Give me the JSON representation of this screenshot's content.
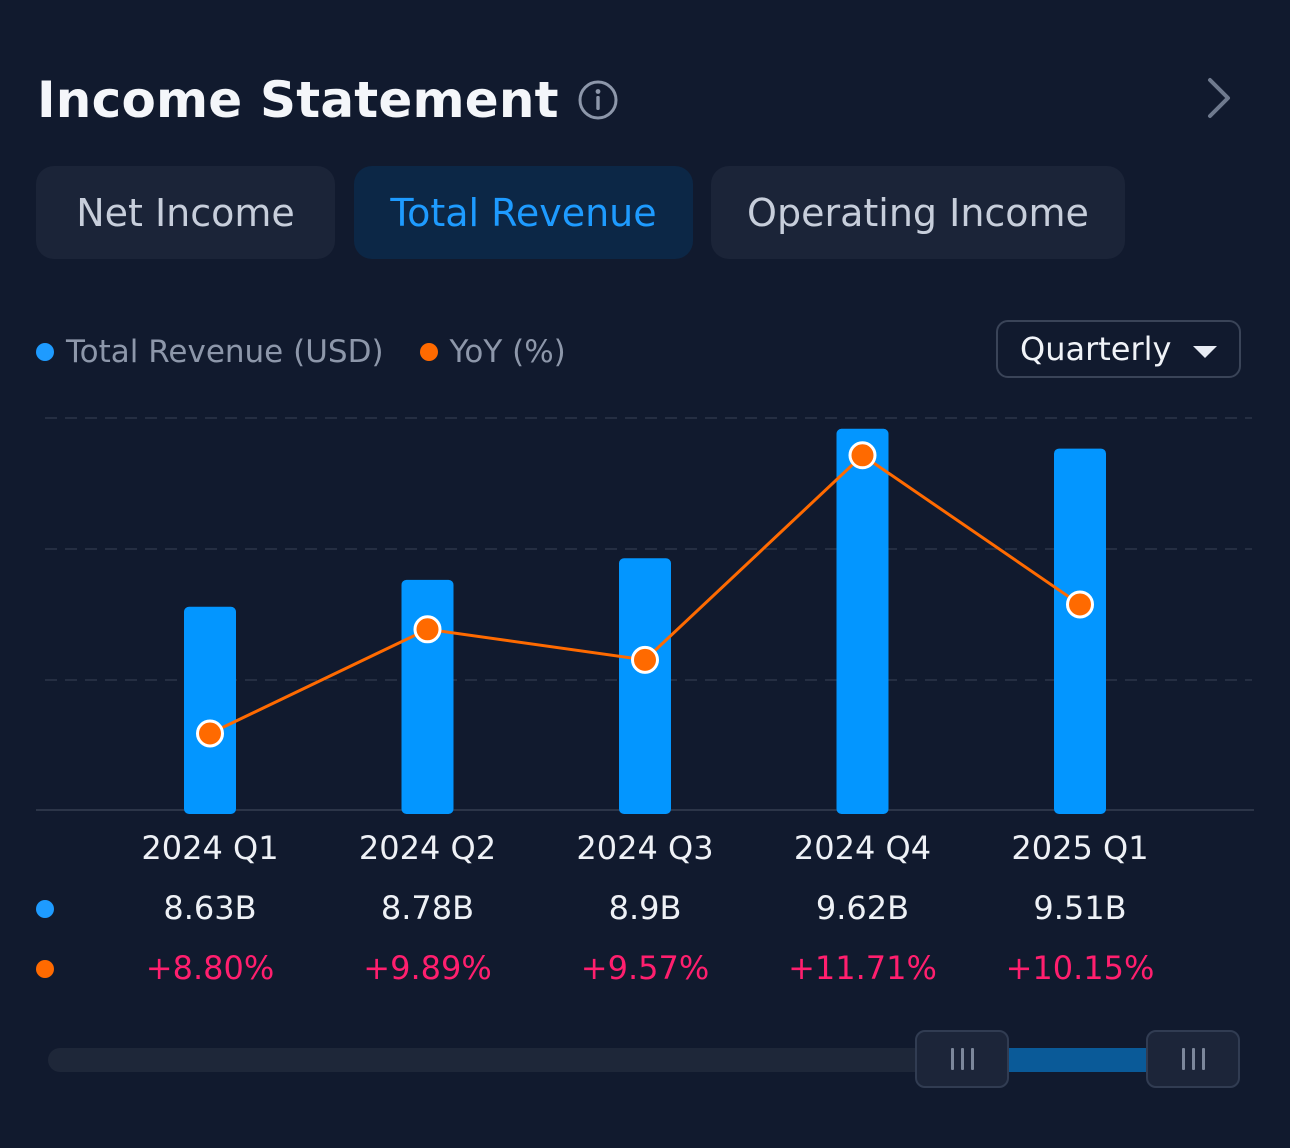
{
  "header": {
    "title": "Income Statement",
    "info_icon": "info-circle-icon",
    "more_icon": "chevron-right-icon"
  },
  "tabs": [
    {
      "label": "Net Income",
      "active": false
    },
    {
      "label": "Total Revenue",
      "active": true
    },
    {
      "label": "Operating Income",
      "active": false
    }
  ],
  "legend": [
    {
      "label": "Total Revenue (USD)",
      "color": "#1e9bff"
    },
    {
      "label": "YoY (%)",
      "color": "#ff6a00"
    }
  ],
  "period_select": {
    "value": "Quarterly",
    "icon": "caret-down-icon"
  },
  "colors": {
    "bar": "#0396ff",
    "line": "#ff6a00",
    "positive": "#ff1f6e",
    "accent": "#1e9bff"
  },
  "chart_data": {
    "type": "bar",
    "categories": [
      "2024 Q1",
      "2024 Q2",
      "2024 Q3",
      "2024 Q4",
      "2025 Q1"
    ],
    "series": [
      {
        "name": "Total Revenue (USD)",
        "type": "bar",
        "values": [
          8.63,
          8.78,
          8.9,
          9.62,
          9.51
        ],
        "unit": "B",
        "labels": [
          "8.63B",
          "8.78B",
          "8.9B",
          "9.62B",
          "9.51B"
        ]
      },
      {
        "name": "YoY (%)",
        "type": "line",
        "values": [
          8.8,
          9.89,
          9.57,
          11.71,
          10.15
        ],
        "labels": [
          "+8.80%",
          "+9.89%",
          "+9.57%",
          "+11.71%",
          "+10.15%"
        ]
      }
    ],
    "grid": true,
    "legend_position": "top-left"
  },
  "range_slider": {
    "handle_icon": "drag-grip-icon",
    "start_fraction": 0.8,
    "end_fraction": 1.0
  }
}
